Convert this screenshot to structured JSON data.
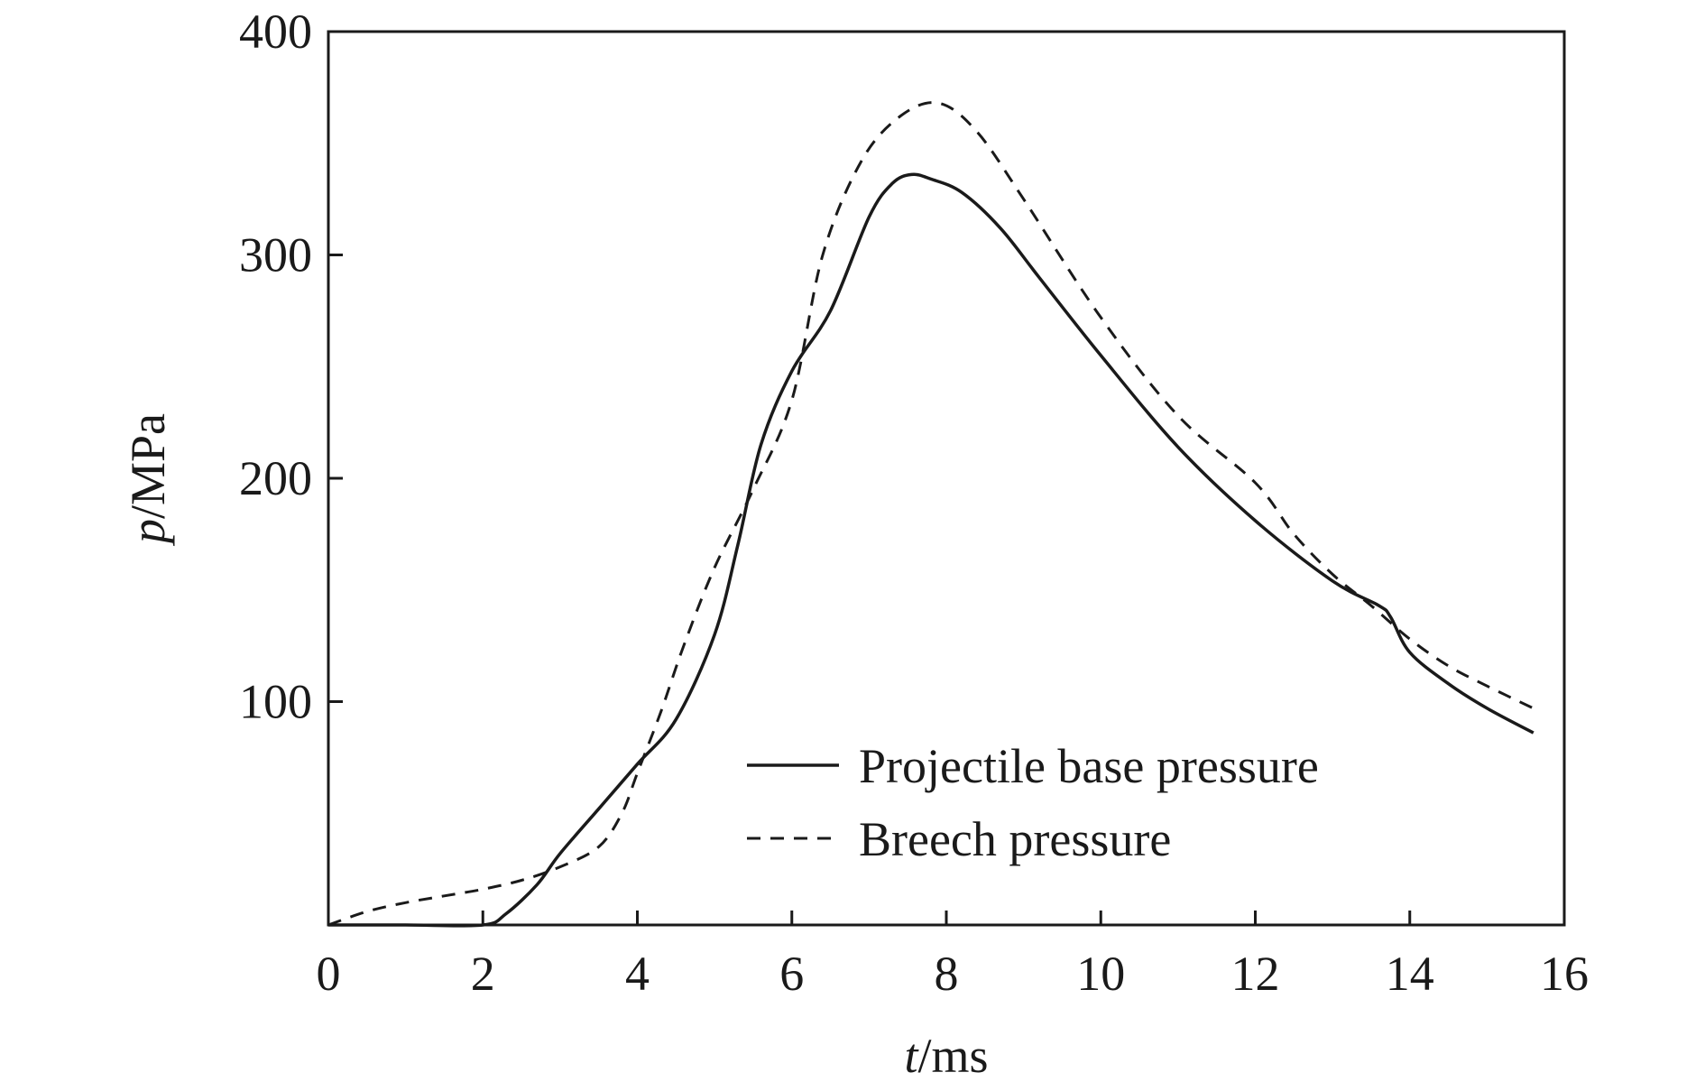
{
  "chart_data": {
    "type": "line",
    "x_label_var": "t",
    "x_label_unit": "/ms",
    "y_label_var": "p",
    "y_label_unit": "/MPa",
    "xlim": [
      0,
      16
    ],
    "ylim": [
      0,
      400
    ],
    "x_ticks": [
      0,
      2,
      4,
      6,
      8,
      10,
      12,
      14,
      16
    ],
    "y_ticks": [
      100,
      200,
      300,
      400
    ],
    "grid": false,
    "legend_position": "bottom-right",
    "series": [
      {
        "name": "Projectile base pressure",
        "style": "solid",
        "color": "#1a1a1a",
        "x": [
          0,
          1.0,
          2.0,
          2.3,
          2.7,
          3.0,
          3.5,
          4.0,
          4.5,
          5.0,
          5.3,
          5.6,
          6.0,
          6.5,
          7.0,
          7.3,
          7.55,
          7.8,
          8.2,
          8.7,
          9.2,
          10.0,
          11.0,
          12.0,
          13.0,
          13.6,
          13.75,
          14.0,
          14.5,
          15.0,
          15.6
        ],
        "y": [
          0,
          0,
          0,
          5,
          18,
          32,
          52,
          72,
          92,
          130,
          170,
          215,
          248,
          275,
          317,
          332,
          336,
          334,
          328,
          312,
          290,
          255,
          214,
          181,
          154,
          143,
          138,
          122,
          108,
          97,
          86
        ]
      },
      {
        "name": "Breech pressure",
        "style": "dashed",
        "color": "#1a1a1a",
        "x": [
          0,
          0.5,
          1.0,
          1.5,
          2.0,
          2.5,
          3.0,
          3.5,
          3.8,
          4.0,
          4.3,
          4.6,
          5.0,
          5.5,
          6.0,
          6.4,
          6.9,
          7.4,
          7.9,
          8.4,
          9.0,
          10.0,
          11.0,
          12.0,
          12.5,
          13.0,
          13.5,
          14.0,
          14.5,
          15.0,
          15.6
        ],
        "y": [
          0,
          6,
          10,
          13,
          16,
          20,
          26,
          35,
          50,
          68,
          95,
          125,
          160,
          195,
          235,
          300,
          342,
          362,
          368,
          355,
          325,
          272,
          228,
          198,
          175,
          157,
          143,
          128,
          116,
          107,
          97
        ]
      }
    ]
  }
}
